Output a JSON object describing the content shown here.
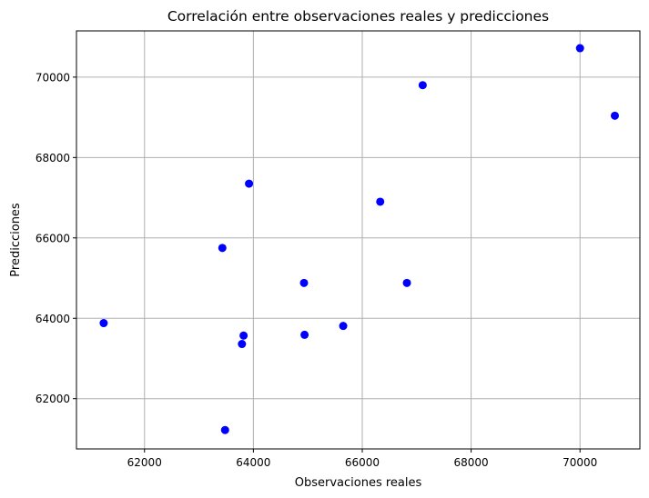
{
  "chart_data": {
    "type": "scatter",
    "title": "Correlación entre observaciones reales y predicciones",
    "xlabel": "Observaciones reales",
    "ylabel": "Predicciones",
    "xlim": [
      60750,
      71100
    ],
    "ylim": [
      60750,
      71150
    ],
    "xticks": [
      62000,
      64000,
      66000,
      68000,
      70000
    ],
    "yticks": [
      62000,
      64000,
      66000,
      68000,
      70000
    ],
    "grid": true,
    "marker_color": "#0000ff",
    "points": [
      {
        "x": 61250,
        "y": 63880
      },
      {
        "x": 63430,
        "y": 65750
      },
      {
        "x": 63480,
        "y": 61220
      },
      {
        "x": 63790,
        "y": 63360
      },
      {
        "x": 63820,
        "y": 63570
      },
      {
        "x": 63920,
        "y": 67350
      },
      {
        "x": 64930,
        "y": 64880
      },
      {
        "x": 64940,
        "y": 63590
      },
      {
        "x": 65650,
        "y": 63810
      },
      {
        "x": 66330,
        "y": 66900
      },
      {
        "x": 66820,
        "y": 64880
      },
      {
        "x": 67110,
        "y": 69800
      },
      {
        "x": 70000,
        "y": 70720
      },
      {
        "x": 70640,
        "y": 69040
      }
    ]
  }
}
